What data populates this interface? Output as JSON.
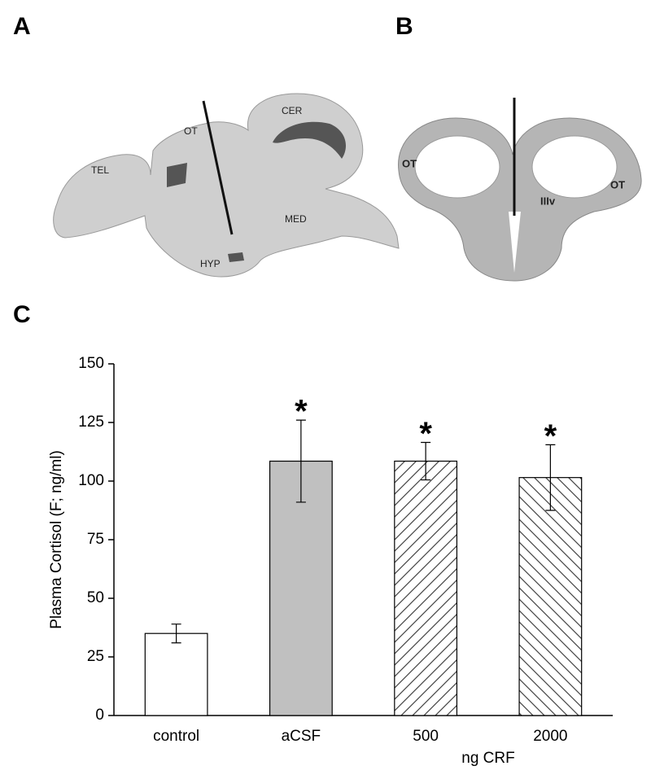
{
  "panels": {
    "a": {
      "letter": "A",
      "labels": [
        "TEL",
        "OT",
        "CER",
        "MED",
        "HYP"
      ]
    },
    "b": {
      "letter": "B",
      "labels": [
        "OT",
        "OT",
        "IIIv"
      ]
    },
    "c": {
      "letter": "C"
    }
  },
  "chart_data": {
    "type": "bar",
    "y_label": "Plasma Cortisol (F; ng/ml)",
    "x_label": "ng CRF",
    "categories": [
      "control",
      "aCSF",
      "500",
      "2000"
    ],
    "values": [
      35,
      108.5,
      108.5,
      101.5
    ],
    "errors": [
      4,
      17.5,
      8,
      14
    ],
    "fills": [
      "white",
      "#c0c0c0",
      "hatch-forward",
      "hatch-back"
    ],
    "markers": [
      null,
      "*",
      "*",
      "*"
    ],
    "ylim": [
      0,
      150
    ],
    "yticks": [
      0,
      25,
      50,
      75,
      100,
      125,
      150
    ]
  }
}
